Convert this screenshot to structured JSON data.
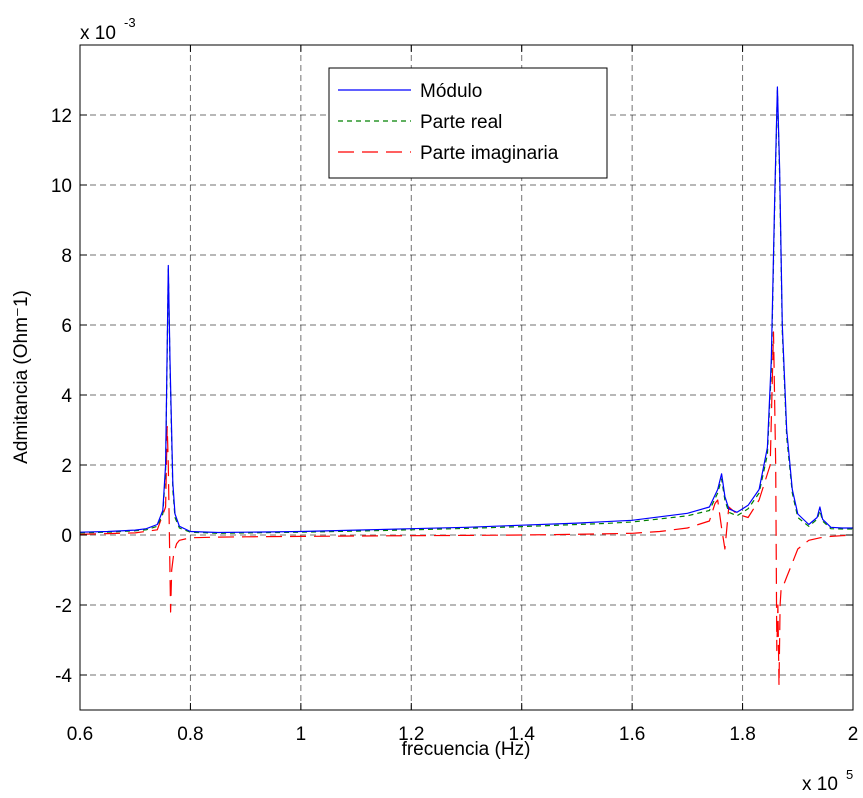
{
  "chart_data": {
    "type": "line",
    "title": "",
    "xlabel": "frecuencia (Hz)",
    "ylabel": "Admitancia (Ohm⁻1)",
    "x_multiplier_label": "x 10",
    "x_multiplier_exp": "5",
    "y_multiplier_label": "x 10",
    "y_multiplier_exp": "-3",
    "xlim": [
      0.6,
      2.0
    ],
    "ylim": [
      -5,
      14
    ],
    "x_ticks": [
      "0.6",
      "0.8",
      "1",
      "1.2",
      "1.4",
      "1.6",
      "1.8",
      "2"
    ],
    "y_ticks": [
      "-4",
      "-2",
      "0",
      "2",
      "4",
      "6",
      "8",
      "10",
      "12"
    ],
    "x_tick_values": [
      0.6,
      0.8,
      1.0,
      1.2,
      1.4,
      1.6,
      1.8,
      2.0
    ],
    "y_tick_values": [
      -4,
      -2,
      0,
      2,
      4,
      6,
      8,
      10,
      12
    ],
    "grid": true,
    "legend_position": "top-center",
    "series": [
      {
        "name": "Módulo",
        "color": "#0000ff",
        "dash": "solid",
        "x": [
          0.6,
          0.65,
          0.7,
          0.72,
          0.74,
          0.75,
          0.755,
          0.76,
          0.763,
          0.768,
          0.772,
          0.78,
          0.8,
          0.85,
          0.9,
          1.0,
          1.1,
          1.2,
          1.3,
          1.4,
          1.5,
          1.55,
          1.6,
          1.65,
          1.7,
          1.74,
          1.755,
          1.762,
          1.768,
          1.775,
          1.79,
          1.81,
          1.83,
          1.845,
          1.852,
          1.858,
          1.863,
          1.867,
          1.872,
          1.88,
          1.89,
          1.9,
          1.92,
          1.935,
          1.94,
          1.945,
          1.96,
          1.98,
          2.0
        ],
        "y": [
          0.08,
          0.1,
          0.14,
          0.18,
          0.3,
          0.7,
          2.0,
          7.7,
          5.0,
          1.5,
          0.6,
          0.25,
          0.1,
          0.07,
          0.08,
          0.1,
          0.14,
          0.18,
          0.22,
          0.28,
          0.34,
          0.38,
          0.42,
          0.52,
          0.62,
          0.8,
          1.3,
          1.75,
          1.1,
          0.75,
          0.65,
          0.85,
          1.3,
          2.5,
          5.0,
          9.5,
          12.8,
          10.5,
          6.0,
          3.0,
          1.3,
          0.6,
          0.3,
          0.5,
          0.8,
          0.45,
          0.22,
          0.2,
          0.2
        ]
      },
      {
        "name": "Parte real",
        "color": "#008000",
        "dash": "dashed",
        "x": [
          0.6,
          0.65,
          0.7,
          0.72,
          0.74,
          0.75,
          0.755,
          0.76,
          0.763,
          0.768,
          0.772,
          0.78,
          0.8,
          0.85,
          0.9,
          1.0,
          1.1,
          1.2,
          1.3,
          1.4,
          1.5,
          1.55,
          1.6,
          1.65,
          1.7,
          1.74,
          1.755,
          1.762,
          1.768,
          1.775,
          1.79,
          1.81,
          1.83,
          1.845,
          1.852,
          1.858,
          1.863,
          1.867,
          1.872,
          1.88,
          1.89,
          1.9,
          1.92,
          1.935,
          1.94,
          1.945,
          1.96,
          1.98,
          2.0
        ],
        "y": [
          0.06,
          0.08,
          0.12,
          0.15,
          0.25,
          0.6,
          1.8,
          7.6,
          4.8,
          1.3,
          0.5,
          0.2,
          0.08,
          0.05,
          0.06,
          0.08,
          0.11,
          0.15,
          0.19,
          0.24,
          0.3,
          0.33,
          0.37,
          0.46,
          0.55,
          0.7,
          1.2,
          1.6,
          1.0,
          0.65,
          0.55,
          0.75,
          1.2,
          2.3,
          4.7,
          9.3,
          12.7,
          10.3,
          5.8,
          2.8,
          1.2,
          0.5,
          0.25,
          0.45,
          0.7,
          0.4,
          0.18,
          0.17,
          0.17
        ]
      },
      {
        "name": "Parte imaginaria",
        "color": "#ff0000",
        "dash": "longdash",
        "x": [
          0.6,
          0.65,
          0.7,
          0.74,
          0.755,
          0.758,
          0.76,
          0.762,
          0.764,
          0.766,
          0.77,
          0.775,
          0.78,
          0.8,
          0.85,
          0.9,
          1.0,
          1.1,
          1.2,
          1.3,
          1.4,
          1.5,
          1.6,
          1.65,
          1.7,
          1.74,
          1.75,
          1.755,
          1.762,
          1.768,
          1.775,
          1.79,
          1.81,
          1.83,
          1.85,
          1.856,
          1.86,
          1.862,
          1.864,
          1.866,
          1.868,
          1.87,
          1.875,
          1.88,
          1.89,
          1.9,
          1.92,
          1.94,
          1.96,
          1.98,
          2.0
        ],
        "y": [
          0.02,
          0.04,
          0.06,
          0.15,
          0.8,
          3.1,
          2.0,
          0.0,
          -2.2,
          -1.0,
          -0.5,
          -0.25,
          -0.15,
          -0.08,
          -0.06,
          -0.05,
          -0.04,
          -0.03,
          -0.02,
          -0.01,
          0.0,
          0.02,
          0.05,
          0.1,
          0.2,
          0.4,
          0.9,
          1.0,
          0.2,
          -0.4,
          0.8,
          0.6,
          0.5,
          1.0,
          2.0,
          5.8,
          2.0,
          -3.3,
          -2.0,
          -4.3,
          -2.0,
          -1.5,
          -1.4,
          -1.2,
          -0.8,
          -0.4,
          -0.15,
          -0.08,
          -0.04,
          -0.02,
          0.0
        ]
      }
    ]
  }
}
